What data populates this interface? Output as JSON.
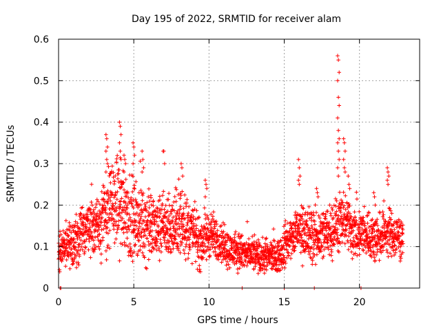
{
  "chart_data": {
    "type": "scatter",
    "title": "Day 195 of 2022, SRMTID for receiver alam",
    "xlabel": "GPS time / hours",
    "ylabel": "SRMTID / TECUs",
    "xlim": [
      0,
      24
    ],
    "ylim": [
      0,
      0.6
    ],
    "xticks": [
      0,
      5,
      10,
      15,
      20
    ],
    "xtick_labels": [
      "0",
      "5",
      "10",
      "15",
      "20"
    ],
    "yticks": [
      0,
      0.1,
      0.2,
      0.3,
      0.4,
      0.5,
      0.6
    ],
    "ytick_labels": [
      "0",
      "0.1",
      "0.2",
      "0.3",
      "0.4",
      "0.5",
      "0.6"
    ],
    "grid": true,
    "marker": "+",
    "color": "#ff0000",
    "series": [
      {
        "name": "SRMTID",
        "trend": [
          [
            0.0,
            0.09
          ],
          [
            0.5,
            0.11
          ],
          [
            1.0,
            0.11
          ],
          [
            1.5,
            0.13
          ],
          [
            2.0,
            0.16
          ],
          [
            2.5,
            0.15
          ],
          [
            3.0,
            0.17
          ],
          [
            3.5,
            0.2
          ],
          [
            4.0,
            0.21
          ],
          [
            4.5,
            0.19
          ],
          [
            5.0,
            0.16
          ],
          [
            5.5,
            0.16
          ],
          [
            6.0,
            0.15
          ],
          [
            6.5,
            0.14
          ],
          [
            7.0,
            0.15
          ],
          [
            7.5,
            0.14
          ],
          [
            8.0,
            0.16
          ],
          [
            8.5,
            0.15
          ],
          [
            9.0,
            0.13
          ],
          [
            9.5,
            0.11
          ],
          [
            10.0,
            0.13
          ],
          [
            10.5,
            0.12
          ],
          [
            11.0,
            0.1
          ],
          [
            11.5,
            0.09
          ],
          [
            12.0,
            0.09
          ],
          [
            12.5,
            0.08
          ],
          [
            13.0,
            0.08
          ],
          [
            13.5,
            0.07
          ],
          [
            14.0,
            0.08
          ],
          [
            14.5,
            0.07
          ],
          [
            15.0,
            0.1
          ],
          [
            15.5,
            0.12
          ],
          [
            16.0,
            0.14
          ],
          [
            16.5,
            0.13
          ],
          [
            17.0,
            0.12
          ],
          [
            17.5,
            0.13
          ],
          [
            18.0,
            0.14
          ],
          [
            18.5,
            0.15
          ],
          [
            19.0,
            0.16
          ],
          [
            19.5,
            0.14
          ],
          [
            20.0,
            0.13
          ],
          [
            20.5,
            0.13
          ],
          [
            21.0,
            0.12
          ],
          [
            21.5,
            0.13
          ],
          [
            22.0,
            0.13
          ],
          [
            22.5,
            0.12
          ],
          [
            22.9,
            0.12
          ]
        ],
        "spread": [
          [
            0.0,
            0.04
          ],
          [
            2.0,
            0.06
          ],
          [
            3.0,
            0.08
          ],
          [
            4.0,
            0.1
          ],
          [
            5.5,
            0.08
          ],
          [
            8.0,
            0.07
          ],
          [
            9.5,
            0.06
          ],
          [
            11.0,
            0.04
          ],
          [
            12.5,
            0.035
          ],
          [
            14.5,
            0.035
          ],
          [
            16.0,
            0.06
          ],
          [
            18.0,
            0.06
          ],
          [
            19.5,
            0.06
          ],
          [
            21.0,
            0.05
          ],
          [
            22.9,
            0.05
          ]
        ],
        "highlights": [
          {
            "x": 3.2,
            "values": [
              0.37,
              0.36,
              0.34,
              0.33,
              0.31,
              0.3,
              0.28
            ]
          },
          {
            "x": 4.1,
            "values": [
              0.4,
              0.39,
              0.37,
              0.35,
              0.33,
              0.31
            ]
          },
          {
            "x": 4.4,
            "values": [
              0.32,
              0.31,
              0.3,
              0.28
            ]
          },
          {
            "x": 5.0,
            "values": [
              0.35,
              0.34,
              0.32,
              0.3
            ]
          },
          {
            "x": 5.6,
            "values": [
              0.33,
              0.31,
              0.29,
              0.28
            ]
          },
          {
            "x": 7.0,
            "values": [
              0.33,
              0.33,
              0.3
            ]
          },
          {
            "x": 8.2,
            "values": [
              0.3,
              0.29,
              0.27
            ]
          },
          {
            "x": 9.8,
            "values": [
              0.26,
              0.25,
              0.24,
              0.22
            ]
          },
          {
            "x": 16.0,
            "values": [
              0.31,
              0.29,
              0.27,
              0.26,
              0.25
            ]
          },
          {
            "x": 17.2,
            "values": [
              0.24,
              0.23,
              0.22
            ]
          },
          {
            "x": 18.6,
            "values": [
              0.56,
              0.55,
              0.52,
              0.5,
              0.46,
              0.44,
              0.41,
              0.38,
              0.36,
              0.35,
              0.33,
              0.31,
              0.29,
              0.27
            ]
          },
          {
            "x": 19.0,
            "values": [
              0.36,
              0.35,
              0.33,
              0.31,
              0.29,
              0.28
            ]
          },
          {
            "x": 19.3,
            "values": [
              0.27,
              0.25,
              0.24
            ]
          },
          {
            "x": 21.9,
            "values": [
              0.29,
              0.28,
              0.27,
              0.26,
              0.25
            ]
          },
          {
            "x": 21.0,
            "values": [
              0.23,
              0.22,
              0.2
            ]
          }
        ],
        "zeros": [
          0.1,
          0.15,
          12.2,
          15.0,
          17.0,
          20.1
        ]
      }
    ]
  }
}
